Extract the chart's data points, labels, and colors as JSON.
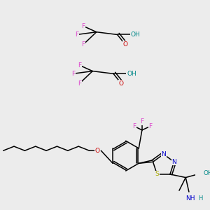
{
  "bg": "#ececec",
  "colors": {
    "C": "#000000",
    "O": "#cc0000",
    "F": "#dd44cc",
    "N": "#0000cc",
    "S": "#aaaa00",
    "OH": "#008888",
    "NH": "#0000cc"
  },
  "lw": 1.1,
  "fs": 6.5
}
